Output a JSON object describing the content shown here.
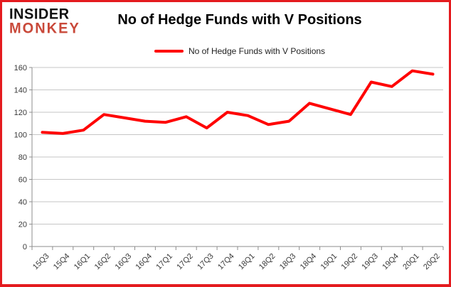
{
  "logo": {
    "line1": "INSIDER",
    "line2": "MONKEY"
  },
  "title": "No of Hedge Funds with V Positions",
  "legend": {
    "label": "No of Hedge Funds with V Positions"
  },
  "colors": {
    "series_line": "#ff0000",
    "frame_border": "#e41b1f",
    "logo_accent": "#c9493a",
    "gridline": "#c6c6c6",
    "axis": "#8e8e8e",
    "tick_text": "#383838"
  },
  "chart_data": {
    "type": "line",
    "title": "No of Hedge Funds with V Positions",
    "categories": [
      "15Q3",
      "15Q4",
      "16Q1",
      "16Q2",
      "16Q3",
      "16Q4",
      "17Q1",
      "17Q2",
      "17Q3",
      "17Q4",
      "18Q1",
      "18Q2",
      "18Q3",
      "18Q4",
      "19Q1",
      "19Q2",
      "19Q3",
      "19Q4",
      "20Q1",
      "20Q2"
    ],
    "series": [
      {
        "name": "No of Hedge Funds with V Positions",
        "color": "#ff0000",
        "values": [
          102,
          101,
          104,
          118,
          115,
          112,
          111,
          116,
          106,
          120,
          117,
          109,
          112,
          128,
          123,
          118,
          147,
          143,
          157,
          154
        ]
      }
    ],
    "xlabel": "",
    "ylabel": "",
    "ylim": [
      0,
      160
    ],
    "yticks": [
      0,
      20,
      40,
      60,
      80,
      100,
      120,
      140,
      160
    ],
    "grid": "horizontal",
    "legend_position": "top-center",
    "marker": "none"
  }
}
